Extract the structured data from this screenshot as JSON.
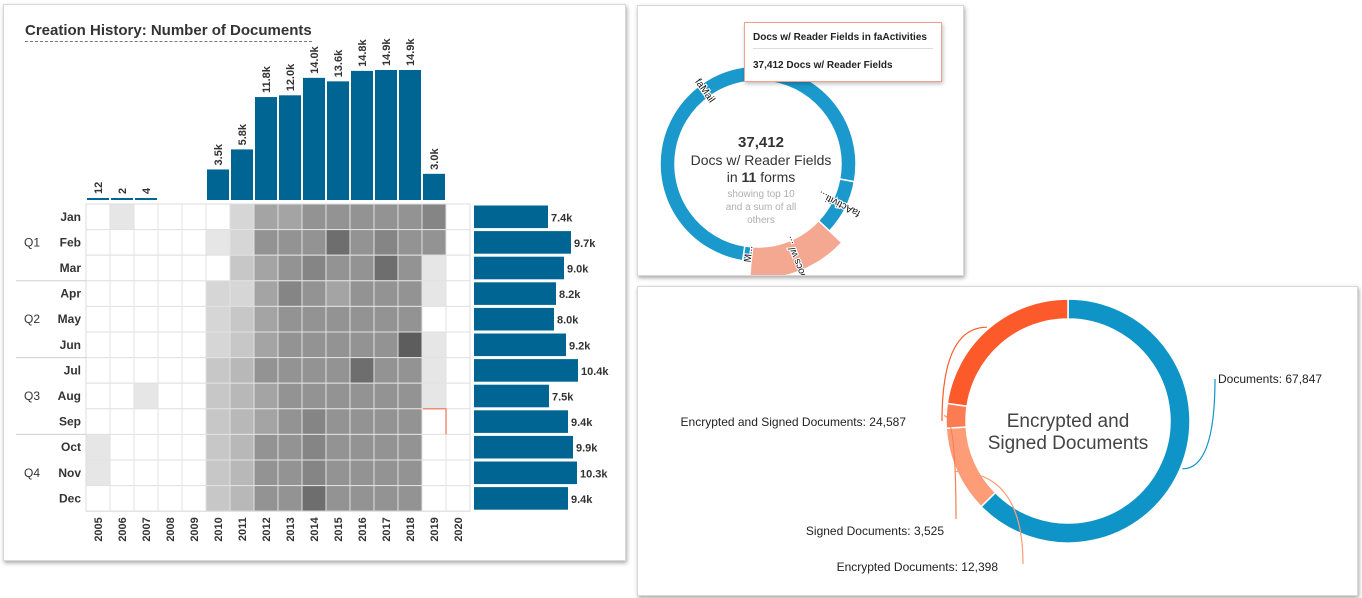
{
  "chart_data": [
    {
      "type": "heatmap",
      "title": "Creation History: Number of Documents",
      "years": [
        "2005",
        "2006",
        "2007",
        "2008",
        "2009",
        "2010",
        "2011",
        "2012",
        "2013",
        "2014",
        "2015",
        "2016",
        "2017",
        "2018",
        "2019",
        "2020"
      ],
      "year_totals": [
        12,
        2,
        4,
        0,
        0,
        3500,
        5800,
        11800,
        12000,
        14000,
        13600,
        14800,
        14900,
        14900,
        3000,
        0
      ],
      "year_total_labels": [
        "12",
        "2",
        "4",
        "",
        "",
        "3.5k",
        "5.8k",
        "11.8k",
        "12.0k",
        "14.0k",
        "13.6k",
        "14.8k",
        "14.9k",
        "14.9k",
        "3.0k",
        ""
      ],
      "quarters": [
        "Q1",
        "Q2",
        "Q3",
        "Q4"
      ],
      "months": [
        "Jan",
        "Feb",
        "Mar",
        "Apr",
        "May",
        "Jun",
        "Jul",
        "Aug",
        "Sep",
        "Oct",
        "Nov",
        "Dec"
      ],
      "month_totals": [
        7400,
        9700,
        9000,
        8200,
        8000,
        9200,
        10400,
        7500,
        9400,
        9900,
        10300,
        9400
      ],
      "month_total_labels": [
        "7.4k",
        "9.7k",
        "9.0k",
        "8.2k",
        "8.0k",
        "9.2k",
        "10.4k",
        "7.5k",
        "9.4k",
        "9.9k",
        "10.3k",
        "9.4k"
      ],
      "cell_intensity": [
        [
          0,
          1,
          0,
          0,
          0,
          0,
          2,
          5,
          5,
          6,
          6,
          6,
          6,
          6,
          7,
          0
        ],
        [
          0,
          0,
          0,
          0,
          0,
          1,
          2,
          6,
          6,
          6,
          8,
          6,
          7,
          6,
          6,
          0
        ],
        [
          0,
          0,
          0,
          0,
          0,
          0,
          3,
          5,
          6,
          7,
          6,
          6,
          8,
          6,
          1,
          0
        ],
        [
          0,
          0,
          0,
          0,
          0,
          2,
          2,
          5,
          7,
          6,
          5,
          6,
          6,
          6,
          1,
          0
        ],
        [
          0,
          0,
          0,
          0,
          0,
          2,
          3,
          5,
          6,
          6,
          6,
          6,
          6,
          6,
          0,
          0
        ],
        [
          0,
          0,
          0,
          0,
          0,
          2,
          3,
          5,
          6,
          6,
          6,
          6,
          6,
          9,
          1,
          0
        ],
        [
          0,
          0,
          0,
          0,
          0,
          3,
          4,
          6,
          6,
          6,
          6,
          8,
          6,
          6,
          1,
          0
        ],
        [
          0,
          0,
          1,
          0,
          0,
          3,
          4,
          5,
          6,
          6,
          6,
          6,
          6,
          6,
          1,
          0
        ],
        [
          0,
          0,
          0,
          0,
          0,
          3,
          4,
          5,
          6,
          7,
          6,
          6,
          6,
          6,
          0,
          0
        ],
        [
          1,
          0,
          0,
          0,
          0,
          3,
          4,
          6,
          6,
          7,
          6,
          6,
          6,
          6,
          0,
          0
        ],
        [
          1,
          0,
          0,
          0,
          0,
          3,
          4,
          6,
          6,
          7,
          6,
          6,
          6,
          6,
          0,
          0
        ],
        [
          0,
          0,
          0,
          0,
          0,
          3,
          4,
          6,
          6,
          8,
          6,
          6,
          6,
          6,
          0,
          0
        ]
      ],
      "bar_color": "#006593"
    },
    {
      "type": "pie",
      "center_value": "37,412",
      "center_label": "Docs w/ Reader Fields",
      "center_forms_prefix": "in",
      "center_forms_count": "11",
      "center_forms_suffix": "forms",
      "center_note": "showing top 10 and a sum of all others",
      "slices": [
        {
          "label": "faMail",
          "value": 28200,
          "color": "#1b99cc"
        },
        {
          "label": "faActiviti...",
          "value": 3400,
          "color": "#1b99cc"
        },
        {
          "label": "Docs w/ ...",
          "value": 5300,
          "color": "#f5a891",
          "highlighted": true
        },
        {
          "label": "M...",
          "value": 512,
          "color": "#1b99cc"
        }
      ],
      "tooltip": {
        "title": "Docs w/ Reader Fields in faActivities",
        "value": "37,412 Docs w/ Reader Fields"
      }
    },
    {
      "type": "pie",
      "title": "Encrypted and Signed Documents",
      "slices": [
        {
          "label": "Documents",
          "value": 67847,
          "display": "Documents: 67,847",
          "color": "#0f94c7"
        },
        {
          "label": "Encrypted Documents",
          "value": 12398,
          "display": "Encrypted Documents: 12,398",
          "color": "#fc9d78"
        },
        {
          "label": "Signed Documents",
          "value": 3525,
          "display": "Signed Documents: 3,525",
          "color": "#fb7b52"
        },
        {
          "label": "Encrypted and Signed Documents",
          "value": 24587,
          "display": "Encrypted and Signed Documents: 24,587",
          "color": "#fc5a2b"
        }
      ]
    }
  ]
}
